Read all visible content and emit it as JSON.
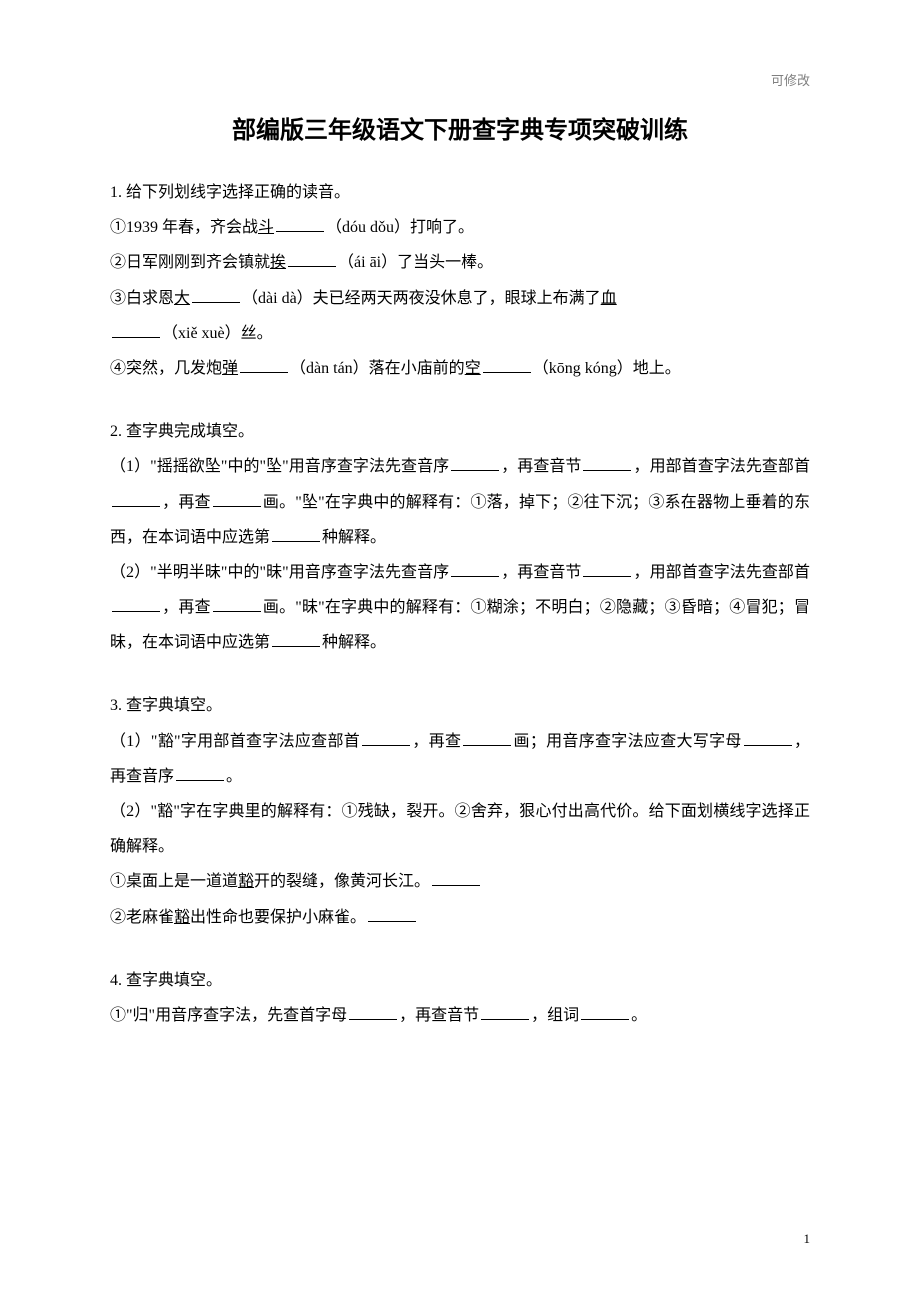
{
  "meta": {
    "watermark": "可修改",
    "page_number": "1"
  },
  "title": "部编版三年级语文下册查字典专项突破训练",
  "q1": {
    "num": "1.",
    "stem": "给下列划线字选择正确的读音。",
    "l1a": "①1939 年春，齐会战",
    "l1u": "斗",
    "l1b": "（dóu  dǒu）打响了。",
    "l2a": "②日军刚刚到齐会镇就",
    "l2u": "挨",
    "l2b": "（ái  āi）了当头一棒。",
    "l3a": "③白求恩",
    "l3u": "大",
    "l3b": "（dài  dà）夫已经两天两夜没休息了，眼球上布满了",
    "l3u2": "血",
    "l3c": "（xiě  xuè）丝。",
    "l4a": "④突然，几发炮",
    "l4u": "弹",
    "l4b": "（dàn  tán）落在小庙前的",
    "l4u2": "空",
    "l4c": "（kōng  kóng）地上。"
  },
  "q2": {
    "num": "2.",
    "stem": "查字典完成填空。",
    "p1a": "（1）\"摇摇欲坠\"中的\"坠\"用音序查字法先查音序",
    "p1b": "，再查音节",
    "p1c": "，用部首查字法先查部首",
    "p1d": "，再查",
    "p1e": "画。\"坠\"在字典中的解释有：①落，掉下；②往下沉；③系在器物上垂着的东西，在本词语中应选第",
    "p1f": "种解释。",
    "p2a": "（2）\"半明半昧\"中的\"昧\"用音序查字法先查音序",
    "p2b": "，再查音节",
    "p2c": "，用部首查字法先查部首",
    "p2d": "，再查",
    "p2e": "画。\"昧\"在字典中的解释有：①糊涂；不明白；②隐藏；③昏暗；④冒犯；冒昧，在本词语中应选第",
    "p2f": "种解释。"
  },
  "q3": {
    "num": "3.",
    "stem": "查字典填空。",
    "p1a": "（1）\"豁\"字用部首查字法应查部首",
    "p1b": "，再查",
    "p1c": "画；用音序查字法应查大写字母",
    "p1d": "，再查音序",
    "p1e": "。",
    "p2": "（2）\"豁\"字在字典里的解释有：①残缺，裂开。②舍弃，狠心付出高代价。给下面划横线字选择正确解释。",
    "l1a": "①桌面上是一道道",
    "l1u": "豁",
    "l1b": "开的裂缝，像黄河长江。",
    "l2a": "②老麻雀",
    "l2u": "豁",
    "l2b": "出性命也要保护小麻雀。"
  },
  "q4": {
    "num": "4.",
    "stem": "查字典填空。",
    "p1a": "①\"归\"用音序查字法，先查首字母",
    "p1b": "，再查音节",
    "p1c": "，组词",
    "p1d": "。"
  }
}
